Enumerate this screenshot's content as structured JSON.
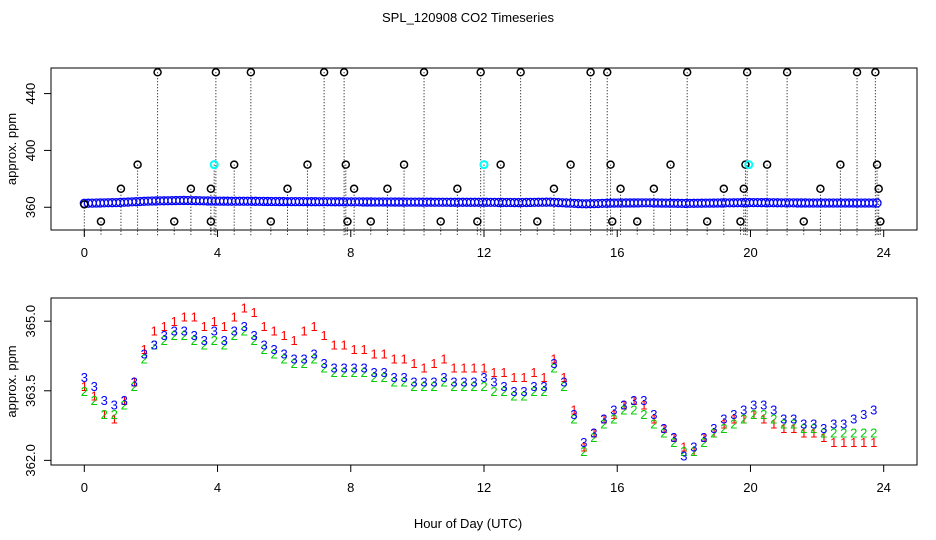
{
  "figure": {
    "title": "SPL_120908  CO2 Timeseries",
    "xlabel": "Hour of Day (UTC)"
  },
  "chart_data": [
    {
      "type": "scatter",
      "title": "",
      "xlabel": "",
      "ylabel": "approx. ppm",
      "xlim": [
        -1,
        25
      ],
      "ylim": [
        344,
        458
      ],
      "xticks": [
        0,
        4,
        8,
        12,
        16,
        20,
        24
      ],
      "yticks": [
        360,
        400,
        440
      ],
      "grid": false,
      "series": [
        {
          "marker": "circle",
          "color": "#000000",
          "x": [
            0.0,
            0.5,
            1.1,
            1.6,
            2.2,
            2.7,
            3.2,
            3.8,
            3.8,
            3.9,
            3.95,
            4.5,
            5.0,
            5.6,
            6.1,
            6.7,
            7.2,
            7.8,
            7.85,
            7.9,
            8.1,
            8.6,
            9.1,
            9.6,
            10.2,
            10.7,
            11.2,
            11.8,
            11.9,
            12.0,
            12.5,
            13.1,
            13.6,
            14.1,
            14.6,
            15.2,
            15.7,
            15.8,
            15.85,
            16.1,
            16.6,
            17.1,
            17.6,
            18.1,
            18.7,
            19.2,
            19.7,
            19.8,
            19.85,
            19.9,
            20.5,
            21.1,
            21.6,
            22.1,
            22.7,
            23.2,
            23.75,
            23.8,
            23.85,
            23.9
          ],
          "y": [
            362,
            350,
            373,
            390,
            455,
            350,
            373,
            350,
            373,
            390,
            455,
            390,
            455,
            350,
            373,
            390,
            455,
            455,
            390,
            350,
            373,
            350,
            373,
            390,
            455,
            350,
            373,
            350,
            455,
            390,
            390,
            455,
            350,
            373,
            390,
            455,
            455,
            390,
            350,
            373,
            350,
            373,
            390,
            455,
            350,
            373,
            350,
            373,
            390,
            455,
            390,
            455,
            350,
            373,
            390,
            455,
            455,
            390,
            373,
            350
          ]
        },
        {
          "marker": "circle-dense",
          "color": "#0000ff",
          "x": [
            0,
            1,
            2,
            3,
            4,
            5,
            6,
            7,
            8,
            9,
            10,
            11,
            12,
            13,
            14,
            15,
            16,
            17,
            18,
            19,
            20,
            21,
            22,
            23,
            23.8
          ],
          "y": [
            362.8,
            363.3,
            364.4,
            364.8,
            364.3,
            364.2,
            364.0,
            363.9,
            363.8,
            363.7,
            363.6,
            363.5,
            363.5,
            363.3,
            363.6,
            362.4,
            363.0,
            363.1,
            362.7,
            363.0,
            363.3,
            363.1,
            363.0,
            363.0,
            363.0
          ]
        },
        {
          "marker": "point",
          "color": "#00ffff",
          "x": [
            3.9,
            12.0,
            19.95
          ],
          "y": [
            390,
            390,
            390
          ]
        }
      ]
    },
    {
      "type": "scatter",
      "title": "",
      "xlabel": "",
      "ylabel": "approx. ppm",
      "xlim": [
        -1,
        25
      ],
      "ylim": [
        361.9,
        365.5
      ],
      "xticks": [
        0,
        4,
        8,
        12,
        16,
        20,
        24
      ],
      "yticks": [
        362.0,
        363.5,
        365.0
      ],
      "grid": false,
      "series": [
        {
          "marker": "1",
          "color": "#ff0000",
          "x": [
            0.0,
            0.3,
            0.6,
            0.9,
            1.2,
            1.5,
            1.8,
            2.1,
            2.4,
            2.7,
            3.0,
            3.3,
            3.6,
            3.9,
            4.2,
            4.5,
            4.8,
            5.1,
            5.4,
            5.7,
            6.0,
            6.3,
            6.6,
            6.9,
            7.2,
            7.5,
            7.8,
            8.1,
            8.4,
            8.7,
            9.0,
            9.3,
            9.6,
            9.9,
            10.2,
            10.5,
            10.8,
            11.1,
            11.4,
            11.7,
            12.0,
            12.3,
            12.6,
            12.9,
            13.2,
            13.5,
            13.8,
            14.1,
            14.4,
            14.7,
            15.0,
            15.3,
            15.6,
            15.9,
            16.2,
            16.5,
            16.8,
            17.1,
            17.4,
            17.7,
            18.0,
            18.3,
            18.6,
            18.9,
            19.2,
            19.5,
            19.8,
            20.1,
            20.4,
            20.7,
            21.0,
            21.3,
            21.6,
            21.9,
            22.2,
            22.5,
            22.8,
            23.1,
            23.4,
            23.7
          ],
          "y": [
            363.6,
            363.4,
            363.0,
            362.9,
            363.3,
            363.7,
            364.4,
            364.8,
            364.9,
            365.0,
            365.1,
            365.1,
            364.9,
            365.0,
            364.9,
            365.1,
            365.3,
            365.2,
            364.9,
            364.8,
            364.7,
            364.6,
            364.8,
            364.9,
            364.7,
            364.5,
            364.5,
            364.4,
            364.4,
            364.3,
            364.3,
            364.2,
            364.2,
            364.1,
            364.0,
            364.1,
            364.2,
            364.0,
            364.0,
            364.0,
            364.0,
            363.9,
            363.9,
            363.8,
            363.8,
            363.9,
            363.8,
            364.2,
            363.8,
            363.1,
            362.3,
            362.6,
            362.9,
            363.0,
            363.2,
            363.3,
            363.2,
            362.9,
            362.7,
            362.5,
            362.3,
            362.2,
            362.5,
            362.6,
            362.8,
            362.9,
            362.9,
            363.0,
            362.9,
            362.8,
            362.7,
            362.7,
            362.6,
            362.6,
            362.5,
            362.4,
            362.4,
            362.4,
            362.4,
            362.4
          ]
        },
        {
          "marker": "2",
          "color": "#00cc00",
          "x": [
            0.0,
            0.3,
            0.6,
            0.9,
            1.2,
            1.5,
            1.8,
            2.1,
            2.4,
            2.7,
            3.0,
            3.3,
            3.6,
            3.9,
            4.2,
            4.5,
            4.8,
            5.1,
            5.4,
            5.7,
            6.0,
            6.3,
            6.6,
            6.9,
            7.2,
            7.5,
            7.8,
            8.1,
            8.4,
            8.7,
            9.0,
            9.3,
            9.6,
            9.9,
            10.2,
            10.5,
            10.8,
            11.1,
            11.4,
            11.7,
            12.0,
            12.3,
            12.6,
            12.9,
            13.2,
            13.5,
            13.8,
            14.1,
            14.4,
            14.7,
            15.0,
            15.3,
            15.6,
            15.9,
            16.2,
            16.5,
            16.8,
            17.1,
            17.4,
            17.7,
            18.0,
            18.3,
            18.6,
            18.9,
            19.2,
            19.5,
            19.8,
            20.1,
            20.4,
            20.7,
            21.0,
            21.3,
            21.6,
            21.9,
            22.2,
            22.5,
            22.8,
            23.1,
            23.4,
            23.7
          ],
          "y": [
            363.5,
            363.3,
            363.0,
            363.0,
            363.2,
            363.6,
            364.2,
            364.5,
            364.6,
            364.7,
            364.7,
            364.6,
            364.5,
            364.6,
            364.5,
            364.7,
            364.8,
            364.6,
            364.4,
            364.3,
            364.2,
            364.1,
            364.1,
            364.2,
            364.0,
            363.9,
            363.9,
            363.9,
            363.9,
            363.8,
            363.8,
            363.7,
            363.7,
            363.6,
            363.6,
            363.6,
            363.7,
            363.6,
            363.6,
            363.6,
            363.6,
            363.5,
            363.5,
            363.4,
            363.4,
            363.5,
            363.5,
            364.0,
            363.6,
            362.9,
            362.2,
            362.5,
            362.8,
            362.9,
            363.1,
            363.1,
            363.0,
            362.8,
            362.6,
            362.4,
            362.2,
            362.2,
            362.4,
            362.6,
            362.7,
            362.8,
            362.9,
            363.0,
            363.0,
            362.9,
            362.8,
            362.8,
            362.7,
            362.7,
            362.6,
            362.6,
            362.6,
            362.6,
            362.6,
            362.6
          ]
        },
        {
          "marker": "3",
          "color": "#0000ff",
          "x": [
            0.0,
            0.3,
            0.6,
            0.9,
            1.2,
            1.5,
            1.8,
            2.1,
            2.4,
            2.7,
            3.0,
            3.3,
            3.6,
            3.9,
            4.2,
            4.5,
            4.8,
            5.1,
            5.4,
            5.7,
            6.0,
            6.3,
            6.6,
            6.9,
            7.2,
            7.5,
            7.8,
            8.1,
            8.4,
            8.7,
            9.0,
            9.3,
            9.6,
            9.9,
            10.2,
            10.5,
            10.8,
            11.1,
            11.4,
            11.7,
            12.0,
            12.3,
            12.6,
            12.9,
            13.2,
            13.5,
            13.8,
            14.1,
            14.4,
            14.7,
            15.0,
            15.3,
            15.6,
            15.9,
            16.2,
            16.5,
            16.8,
            17.1,
            17.4,
            17.7,
            18.0,
            18.3,
            18.6,
            18.9,
            19.2,
            19.5,
            19.8,
            20.1,
            20.4,
            20.7,
            21.0,
            21.3,
            21.6,
            21.9,
            22.2,
            22.5,
            22.8,
            23.1,
            23.4,
            23.7
          ],
          "y": [
            363.8,
            363.6,
            363.3,
            363.2,
            363.3,
            363.7,
            364.3,
            364.5,
            364.7,
            364.8,
            364.8,
            364.7,
            364.6,
            364.8,
            364.6,
            364.8,
            364.9,
            364.7,
            364.5,
            364.4,
            364.3,
            364.2,
            364.2,
            364.3,
            364.1,
            364.0,
            364.0,
            364.0,
            364.0,
            363.9,
            363.9,
            363.8,
            363.8,
            363.7,
            363.7,
            363.7,
            363.8,
            363.7,
            363.7,
            363.7,
            363.8,
            363.7,
            363.6,
            363.5,
            363.5,
            363.6,
            363.6,
            364.1,
            363.7,
            363.0,
            362.4,
            362.6,
            362.9,
            363.1,
            363.2,
            363.3,
            363.3,
            363.0,
            362.7,
            362.5,
            362.1,
            362.3,
            362.5,
            362.7,
            362.9,
            363.0,
            363.1,
            363.2,
            363.2,
            363.1,
            362.9,
            362.9,
            362.8,
            362.8,
            362.7,
            362.8,
            362.8,
            362.9,
            363.0,
            363.1
          ]
        }
      ]
    }
  ]
}
